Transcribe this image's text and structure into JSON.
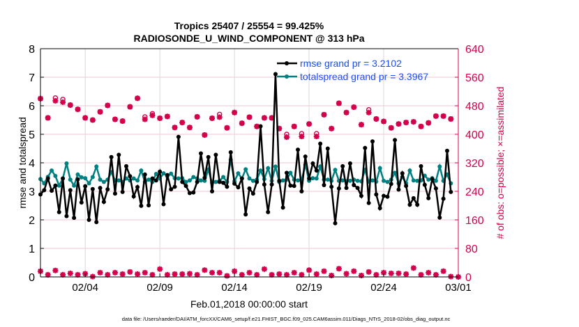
{
  "chart_data": {
    "type": "line",
    "title": "Tropics 25407 / 25554 = 99.425%",
    "subtitle": "RADIOSONDE_U_WIND_COMPONENT @ 313 hPa",
    "xlabel": "Feb.01,2018 00:00:00 start",
    "ylabel": "rmse and totalspread",
    "ylabel_right": "# of obs: o=possible; ×=assimilated",
    "ylim": [
      0,
      8
    ],
    "ylim_right": [
      0,
      640
    ],
    "yticks": [
      "0",
      "1",
      "2",
      "3",
      "4",
      "5",
      "6",
      "7",
      "8"
    ],
    "yticks_right": [
      "0",
      "80",
      "160",
      "240",
      "320",
      "400",
      "480",
      "560",
      "640"
    ],
    "xticks": [
      "02/04",
      "02/09",
      "02/14",
      "02/19",
      "02/24",
      "03/01"
    ],
    "grid": true,
    "legend_placement": "top-right",
    "colors": {
      "rmse": "#000000",
      "totalspread": "#008080",
      "obs": "#d4004c",
      "legend_text": "#1a4cff",
      "grid_h": "#f2c6d6",
      "grid_v": "#d9d9d9"
    },
    "series": [
      {
        "name": "rmse grand pr = 3.2102",
        "values": [
          2.89,
          3.04,
          3.45,
          3.02,
          3.2,
          2.27,
          3.45,
          2.13,
          3.04,
          2.07,
          3.42,
          2.61,
          3.18,
          2.0,
          3.08,
          1.92,
          3.12,
          2.63,
          3.07,
          4.2,
          2.92,
          4.28,
          2.98,
          3.88,
          3.53,
          2.82,
          3.15,
          2.49,
          3.59,
          2.51,
          3.45,
          3.38,
          3.69,
          2.55,
          3.57,
          3.07,
          3.16,
          4.91,
          3.33,
          3.19,
          2.94,
          2.96,
          3.33,
          4.33,
          3.47,
          4.2,
          3.0,
          4.28,
          3.33,
          3.3,
          3.16,
          4.37,
          3.27,
          3.14,
          3.45,
          2.19,
          3.1,
          2.92,
          3.33,
          5.28,
          3.24,
          2.27,
          3.24,
          7.11,
          3.37,
          2.43,
          3.65,
          3.2,
          3.19,
          4.46,
          3.0,
          4.22,
          3.45,
          3.98,
          3.73,
          4.67,
          3.22,
          4.5,
          3.16,
          1.88,
          3.1,
          3.88,
          3.12,
          3.98,
          3.22,
          3.12,
          2.84,
          4.52,
          2.59,
          4.75,
          2.89,
          2.41,
          2.84,
          2.81,
          3.26,
          4.8,
          3.06,
          3.63,
          3.19,
          2.53,
          2.76,
          2.53,
          3.88,
          3.23,
          2.76,
          3.43,
          3.1,
          2.08,
          2.74,
          4.42,
          2.98
        ]
      },
      {
        "name": "totalspread grand pr = 3.3967",
        "values": [
          3.43,
          3.28,
          3.51,
          3.73,
          3.54,
          3.2,
          3.45,
          3.98,
          3.41,
          3.2,
          3.59,
          3.49,
          3.46,
          3.28,
          3.5,
          3.87,
          3.41,
          3.33,
          3.41,
          3.67,
          3.38,
          3.38,
          3.33,
          3.45,
          3.38,
          3.45,
          3.38,
          3.73,
          3.33,
          3.41,
          3.33,
          3.61,
          3.45,
          3.63,
          3.53,
          3.62,
          3.46,
          3.45,
          3.46,
          3.33,
          3.38,
          3.5,
          3.45,
          3.38,
          3.37,
          3.76,
          3.3,
          3.33,
          3.37,
          3.5,
          3.33,
          4.11,
          3.35,
          3.63,
          3.45,
          3.77,
          3.45,
          3.37,
          3.41,
          3.73,
          3.43,
          3.81,
          3.37,
          3.87,
          3.33,
          3.38,
          3.41,
          3.65,
          3.41,
          3.38,
          3.39,
          3.93,
          3.37,
          3.46,
          3.45,
          3.87,
          3.41,
          3.41,
          3.37,
          3.75,
          3.37,
          3.38,
          3.35,
          3.37,
          3.41,
          3.37,
          3.35,
          3.75,
          3.34,
          3.38,
          3.34,
          3.81,
          3.37,
          3.33,
          3.41,
          3.65,
          3.28,
          3.5,
          3.28,
          3.73,
          3.38,
          3.37,
          3.38,
          3.55,
          3.41,
          3.46,
          3.37,
          3.87,
          3.37,
          3.59,
          3.28
        ]
      },
      {
        "axis": "right",
        "marker": "o",
        "values": [
          500,
          446,
          502,
          498,
          482,
          470,
          446,
          440,
          463,
          481,
          442,
          437,
          477,
          501,
          449,
          458,
          445,
          450,
          419,
          433,
          419,
          449,
          398,
          445,
          456,
          418,
          461,
          431,
          448,
          422,
          446,
          446,
          416,
          400,
          422,
          402,
          429,
          402,
          455,
          416,
          487,
          461,
          476,
          427,
          469,
          443,
          436,
          418,
          429,
          433,
          435,
          422,
          432,
          451,
          451,
          443
        ]
      },
      {
        "axis": "right",
        "marker": "x",
        "values": [
          500,
          446,
          494,
          490,
          482,
          470,
          446,
          440,
          463,
          481,
          442,
          437,
          477,
          501,
          442,
          453,
          445,
          450,
          419,
          433,
          419,
          449,
          398,
          445,
          448,
          418,
          461,
          431,
          448,
          422,
          446,
          446,
          416,
          392,
          422,
          394,
          429,
          394,
          455,
          416,
          487,
          461,
          476,
          427,
          461,
          443,
          436,
          418,
          429,
          433,
          435,
          422,
          432,
          451,
          451,
          443
        ]
      },
      {
        "axis": "right",
        "marker": "o",
        "values": [
          16,
          6,
          18,
          6,
          10,
          6,
          9,
          1,
          12,
          6,
          12,
          8,
          14,
          8,
          12,
          6,
          22,
          6,
          8,
          8,
          9,
          6,
          19,
          12,
          12,
          3,
          16,
          6,
          12,
          6,
          22,
          6,
          8,
          6,
          12,
          6,
          19,
          8,
          16,
          4,
          23,
          9,
          16,
          4,
          14,
          6,
          12,
          10,
          10,
          8,
          25,
          6,
          12,
          6,
          16,
          1,
          0
        ]
      }
    ]
  },
  "footer": "data file: /Users/raeder/DAI/ATM_forcXX/CAM6_setup/f.e21.FHIST_BGC.f09_025.CAM6assim.011/Diags_NTrS_2018-02/obs_diag_output.nc"
}
